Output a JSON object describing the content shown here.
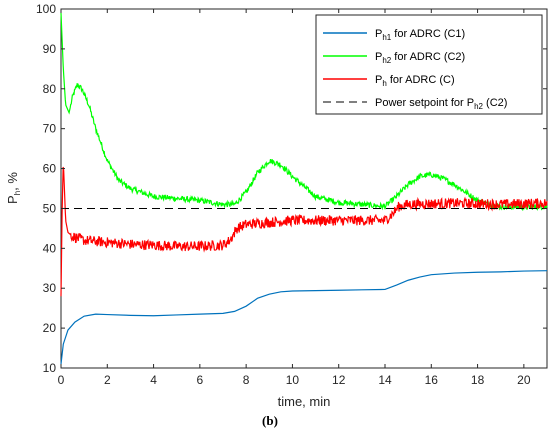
{
  "chart_data": {
    "type": "line",
    "xlabel": "time, min",
    "ylabel_main": "P",
    "ylabel_sub": "h",
    "ylabel_tail": ", %",
    "xlim": [
      0,
      21
    ],
    "ylim": [
      10,
      100
    ],
    "xticks": [
      0,
      2,
      4,
      6,
      8,
      10,
      12,
      14,
      16,
      18,
      20
    ],
    "yticks": [
      10,
      20,
      30,
      40,
      50,
      60,
      70,
      80,
      90,
      100
    ],
    "grid": false,
    "legend_position": "top-right",
    "caption": "(b)",
    "series": [
      {
        "name_main": "P",
        "name_sub": "h1",
        "name_tail": " for ADRC (C1)",
        "color": "#0072BD",
        "style": "solid",
        "noise": 0,
        "x": [
          0,
          0.1,
          0.3,
          0.6,
          1,
          1.5,
          2,
          3,
          4,
          5,
          6,
          7,
          7.5,
          8,
          8.5,
          9,
          9.5,
          10,
          11,
          12,
          13,
          14,
          14.5,
          15,
          15.5,
          16,
          17,
          18,
          19,
          20,
          21
        ],
        "y": [
          11,
          16,
          19.5,
          21.5,
          23,
          23.5,
          23.4,
          23.2,
          23.1,
          23.3,
          23.5,
          23.7,
          24.2,
          25.5,
          27.5,
          28.5,
          29.1,
          29.3,
          29.4,
          29.5,
          29.6,
          29.7,
          30.8,
          32,
          32.8,
          33.4,
          33.8,
          34,
          34.1,
          34.3,
          34.4
        ]
      },
      {
        "name_main": "P",
        "name_sub": "h2",
        "name_tail": " for ADRC (C2)",
        "color": "#00FF00",
        "style": "solid",
        "noise": 1.4,
        "x": [
          0,
          0.1,
          0.2,
          0.35,
          0.5,
          0.7,
          0.9,
          1.2,
          1.5,
          2,
          2.5,
          3,
          3.5,
          4,
          5,
          6,
          7,
          7.5,
          8,
          8.5,
          9,
          9.5,
          10,
          11,
          12,
          13,
          14,
          14.5,
          15,
          15.5,
          16,
          16.5,
          17,
          17.5,
          18,
          18.5,
          19,
          20,
          21
        ],
        "y": [
          99,
          85,
          76,
          74,
          78,
          81,
          80,
          76,
          70,
          62,
          57,
          55,
          54,
          53,
          52.5,
          52,
          51,
          51,
          54,
          59,
          62,
          61,
          58,
          53,
          51.5,
          51,
          50.5,
          53,
          56,
          58,
          58.5,
          57.5,
          56,
          54,
          52,
          51,
          50.5,
          50.3,
          50.5
        ]
      },
      {
        "name_main": "P",
        "name_sub": "h",
        "name_tail": " for ADRC (C)",
        "color": "#FF0000",
        "style": "solid",
        "noise": 2.6,
        "x": [
          0,
          0.05,
          0.1,
          0.2,
          0.3,
          0.5,
          1,
          2,
          3,
          4,
          5,
          6,
          7,
          7.3,
          7.6,
          8,
          9,
          10,
          11,
          12,
          13,
          14,
          14.3,
          14.6,
          15,
          16,
          17,
          18,
          19,
          20,
          21
        ],
        "y": [
          28,
          50,
          62,
          47,
          44,
          43,
          42,
          41.5,
          41,
          40.8,
          40.5,
          40.5,
          40.8,
          42,
          45,
          46,
          46.5,
          47,
          47,
          47,
          47,
          47,
          48.5,
          50.5,
          51,
          51.2,
          51.3,
          51.2,
          51,
          51.2,
          51.3
        ]
      },
      {
        "name_main": "Power setpoint for P",
        "name_sub": "h2",
        "name_tail": " (C2)",
        "color": "#000000",
        "style": "dashed",
        "noise": 0,
        "x": [
          0,
          21
        ],
        "y": [
          50,
          50
        ]
      }
    ]
  }
}
